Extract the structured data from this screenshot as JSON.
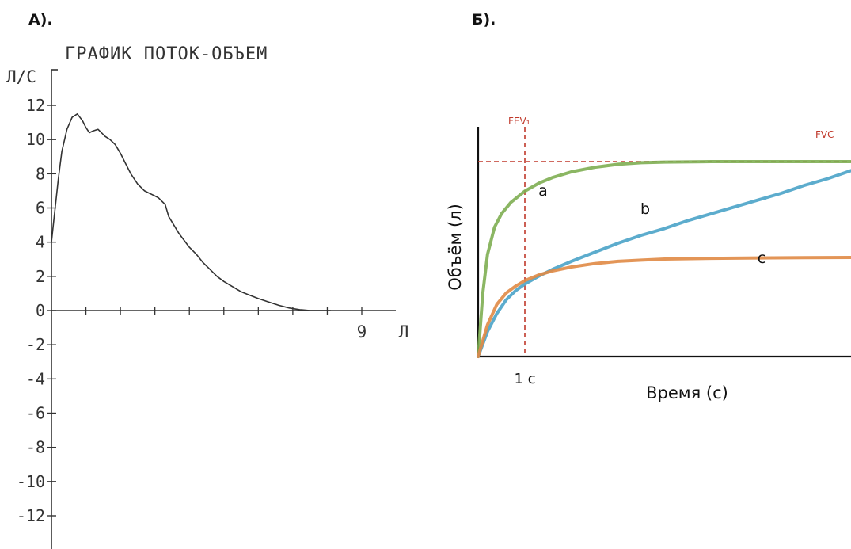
{
  "panels": {
    "a_label": "А).",
    "b_label": "Б)."
  },
  "chart_data": [
    {
      "type": "line",
      "title": "ГРАФИК ПОТОК-ОБЪЕМ",
      "ylabel": "Л/С",
      "xlabel": "Л",
      "x_tick_label": "9",
      "x_tick_value": 9,
      "xlim": [
        0,
        11.3
      ],
      "ylim": [
        -13,
        12.5
      ],
      "y_ticks": [
        12,
        10,
        8,
        6,
        4,
        2,
        0,
        -2,
        -4,
        -6,
        -8,
        -10,
        -12
      ],
      "y_tick_labels": [
        "12",
        "10",
        "8",
        "6",
        "4",
        "2",
        "0",
        "-2",
        "-4",
        "-6",
        "-8",
        "-10",
        "-12"
      ],
      "color": "#333333",
      "series": [
        {
          "x": [
            0.0,
            0.08,
            0.2,
            0.3,
            0.45,
            0.6,
            0.75,
            0.9,
            1.0,
            1.1,
            1.2,
            1.35,
            1.45,
            1.55,
            1.7,
            1.85,
            2.0,
            2.15,
            2.3,
            2.5,
            2.6,
            2.7,
            2.8,
            2.9,
            3.0,
            3.1,
            3.2,
            3.3,
            3.4,
            3.55,
            3.7,
            3.85,
            4.0,
            4.2,
            4.4,
            4.6,
            4.8,
            5.0,
            5.25,
            5.5,
            5.75,
            6.0,
            6.3,
            6.6,
            6.9,
            7.2,
            7.5,
            7.8,
            8.1
          ],
          "y": [
            4.0,
            5.5,
            7.7,
            9.3,
            10.6,
            11.3,
            11.5,
            11.1,
            10.7,
            10.4,
            10.5,
            10.6,
            10.4,
            10.2,
            10.0,
            9.7,
            9.2,
            8.6,
            8.0,
            7.4,
            7.2,
            7.0,
            6.9,
            6.8,
            6.7,
            6.6,
            6.4,
            6.2,
            5.5,
            5.0,
            4.5,
            4.1,
            3.7,
            3.3,
            2.8,
            2.4,
            2.0,
            1.7,
            1.4,
            1.1,
            0.9,
            0.7,
            0.5,
            0.3,
            0.15,
            0.05,
            0.0,
            0.0,
            0.0
          ]
        }
      ]
    },
    {
      "type": "line",
      "xlabel": "Время (с)",
      "ylabel": "Объём (л)",
      "x_tick_label": "1 c",
      "x_tick_value": 1,
      "xlim": [
        0,
        8
      ],
      "ylim": [
        0,
        1.0
      ],
      "annotations": {
        "fev1": "FEV₁",
        "fvc": "FVC",
        "marker_color": "#c0392b"
      },
      "fvc_level": 0.86,
      "series": [
        {
          "name": "a",
          "color": "#7eae52",
          "x": [
            0,
            0.1,
            0.2,
            0.35,
            0.5,
            0.7,
            1.0,
            1.3,
            1.6,
            2.0,
            2.5,
            3.0,
            3.5,
            4.0,
            5.0,
            6.0,
            7.0,
            8.0
          ],
          "y": [
            0,
            0.28,
            0.45,
            0.57,
            0.63,
            0.68,
            0.73,
            0.765,
            0.79,
            0.815,
            0.835,
            0.848,
            0.855,
            0.858,
            0.86,
            0.86,
            0.86,
            0.86
          ]
        },
        {
          "name": "b",
          "color": "#4aa3c8",
          "x": [
            0,
            0.2,
            0.4,
            0.6,
            0.8,
            1.0,
            1.3,
            1.6,
            2.0,
            2.5,
            3.0,
            3.5,
            4.0,
            4.5,
            5.0,
            5.5,
            6.0,
            6.5,
            7.0,
            7.5,
            8.0
          ],
          "y": [
            0,
            0.11,
            0.19,
            0.25,
            0.29,
            0.32,
            0.355,
            0.385,
            0.42,
            0.46,
            0.5,
            0.535,
            0.565,
            0.6,
            0.63,
            0.66,
            0.69,
            0.72,
            0.755,
            0.785,
            0.82
          ]
        },
        {
          "name": "c",
          "color": "#e08a45",
          "x": [
            0,
            0.2,
            0.4,
            0.6,
            0.8,
            1.0,
            1.3,
            1.6,
            2.0,
            2.5,
            3.0,
            3.5,
            4.0,
            5.0,
            6.0,
            7.0,
            8.0
          ],
          "y": [
            0,
            0.14,
            0.23,
            0.28,
            0.31,
            0.335,
            0.36,
            0.378,
            0.395,
            0.41,
            0.42,
            0.425,
            0.43,
            0.433,
            0.435,
            0.436,
            0.437
          ]
        }
      ],
      "curve_labels": [
        "a",
        "b",
        "c"
      ]
    }
  ]
}
